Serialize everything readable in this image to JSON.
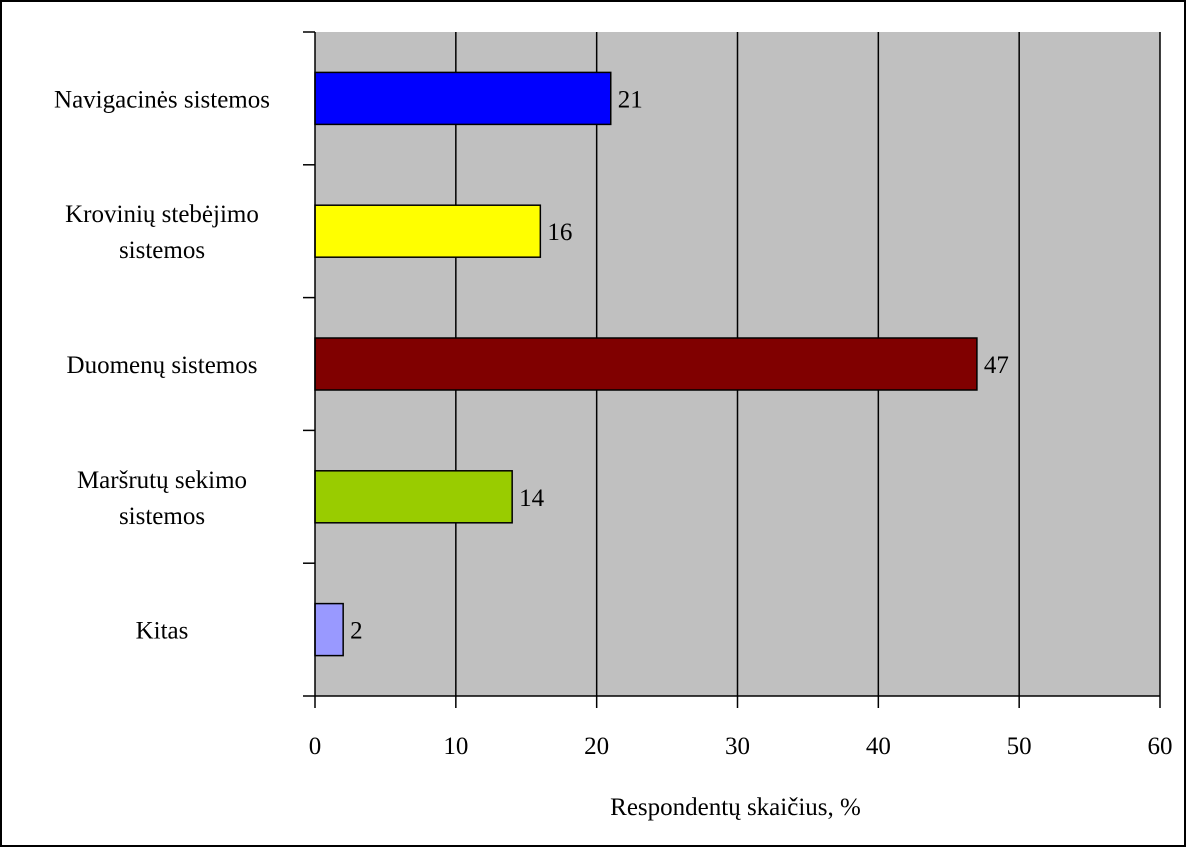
{
  "chart_data": {
    "type": "bar",
    "orientation": "horizontal",
    "categories": [
      [
        "Navigacinės sistemos"
      ],
      [
        "Krovinių stebėjimo",
        "sistemos"
      ],
      [
        "Duomenų sistemos"
      ],
      [
        "Maršrutų sekimo",
        "sistemos"
      ],
      [
        "Kitas"
      ]
    ],
    "values": [
      21,
      16,
      47,
      14,
      2
    ],
    "data_labels": [
      "21",
      "16",
      "47",
      "14",
      "2"
    ],
    "bar_colors": [
      "#0000ff",
      "#ffff00",
      "#800000",
      "#99cc00",
      "#9999ff"
    ],
    "xlabel": "Respondentų skaičius, %",
    "ylabel": "",
    "title": "",
    "xlim": [
      0,
      60
    ],
    "x_ticks": [
      0,
      10,
      20,
      30,
      40,
      50,
      60
    ],
    "grid": true,
    "legend": "none",
    "plot_background": "#c0c0c0"
  }
}
